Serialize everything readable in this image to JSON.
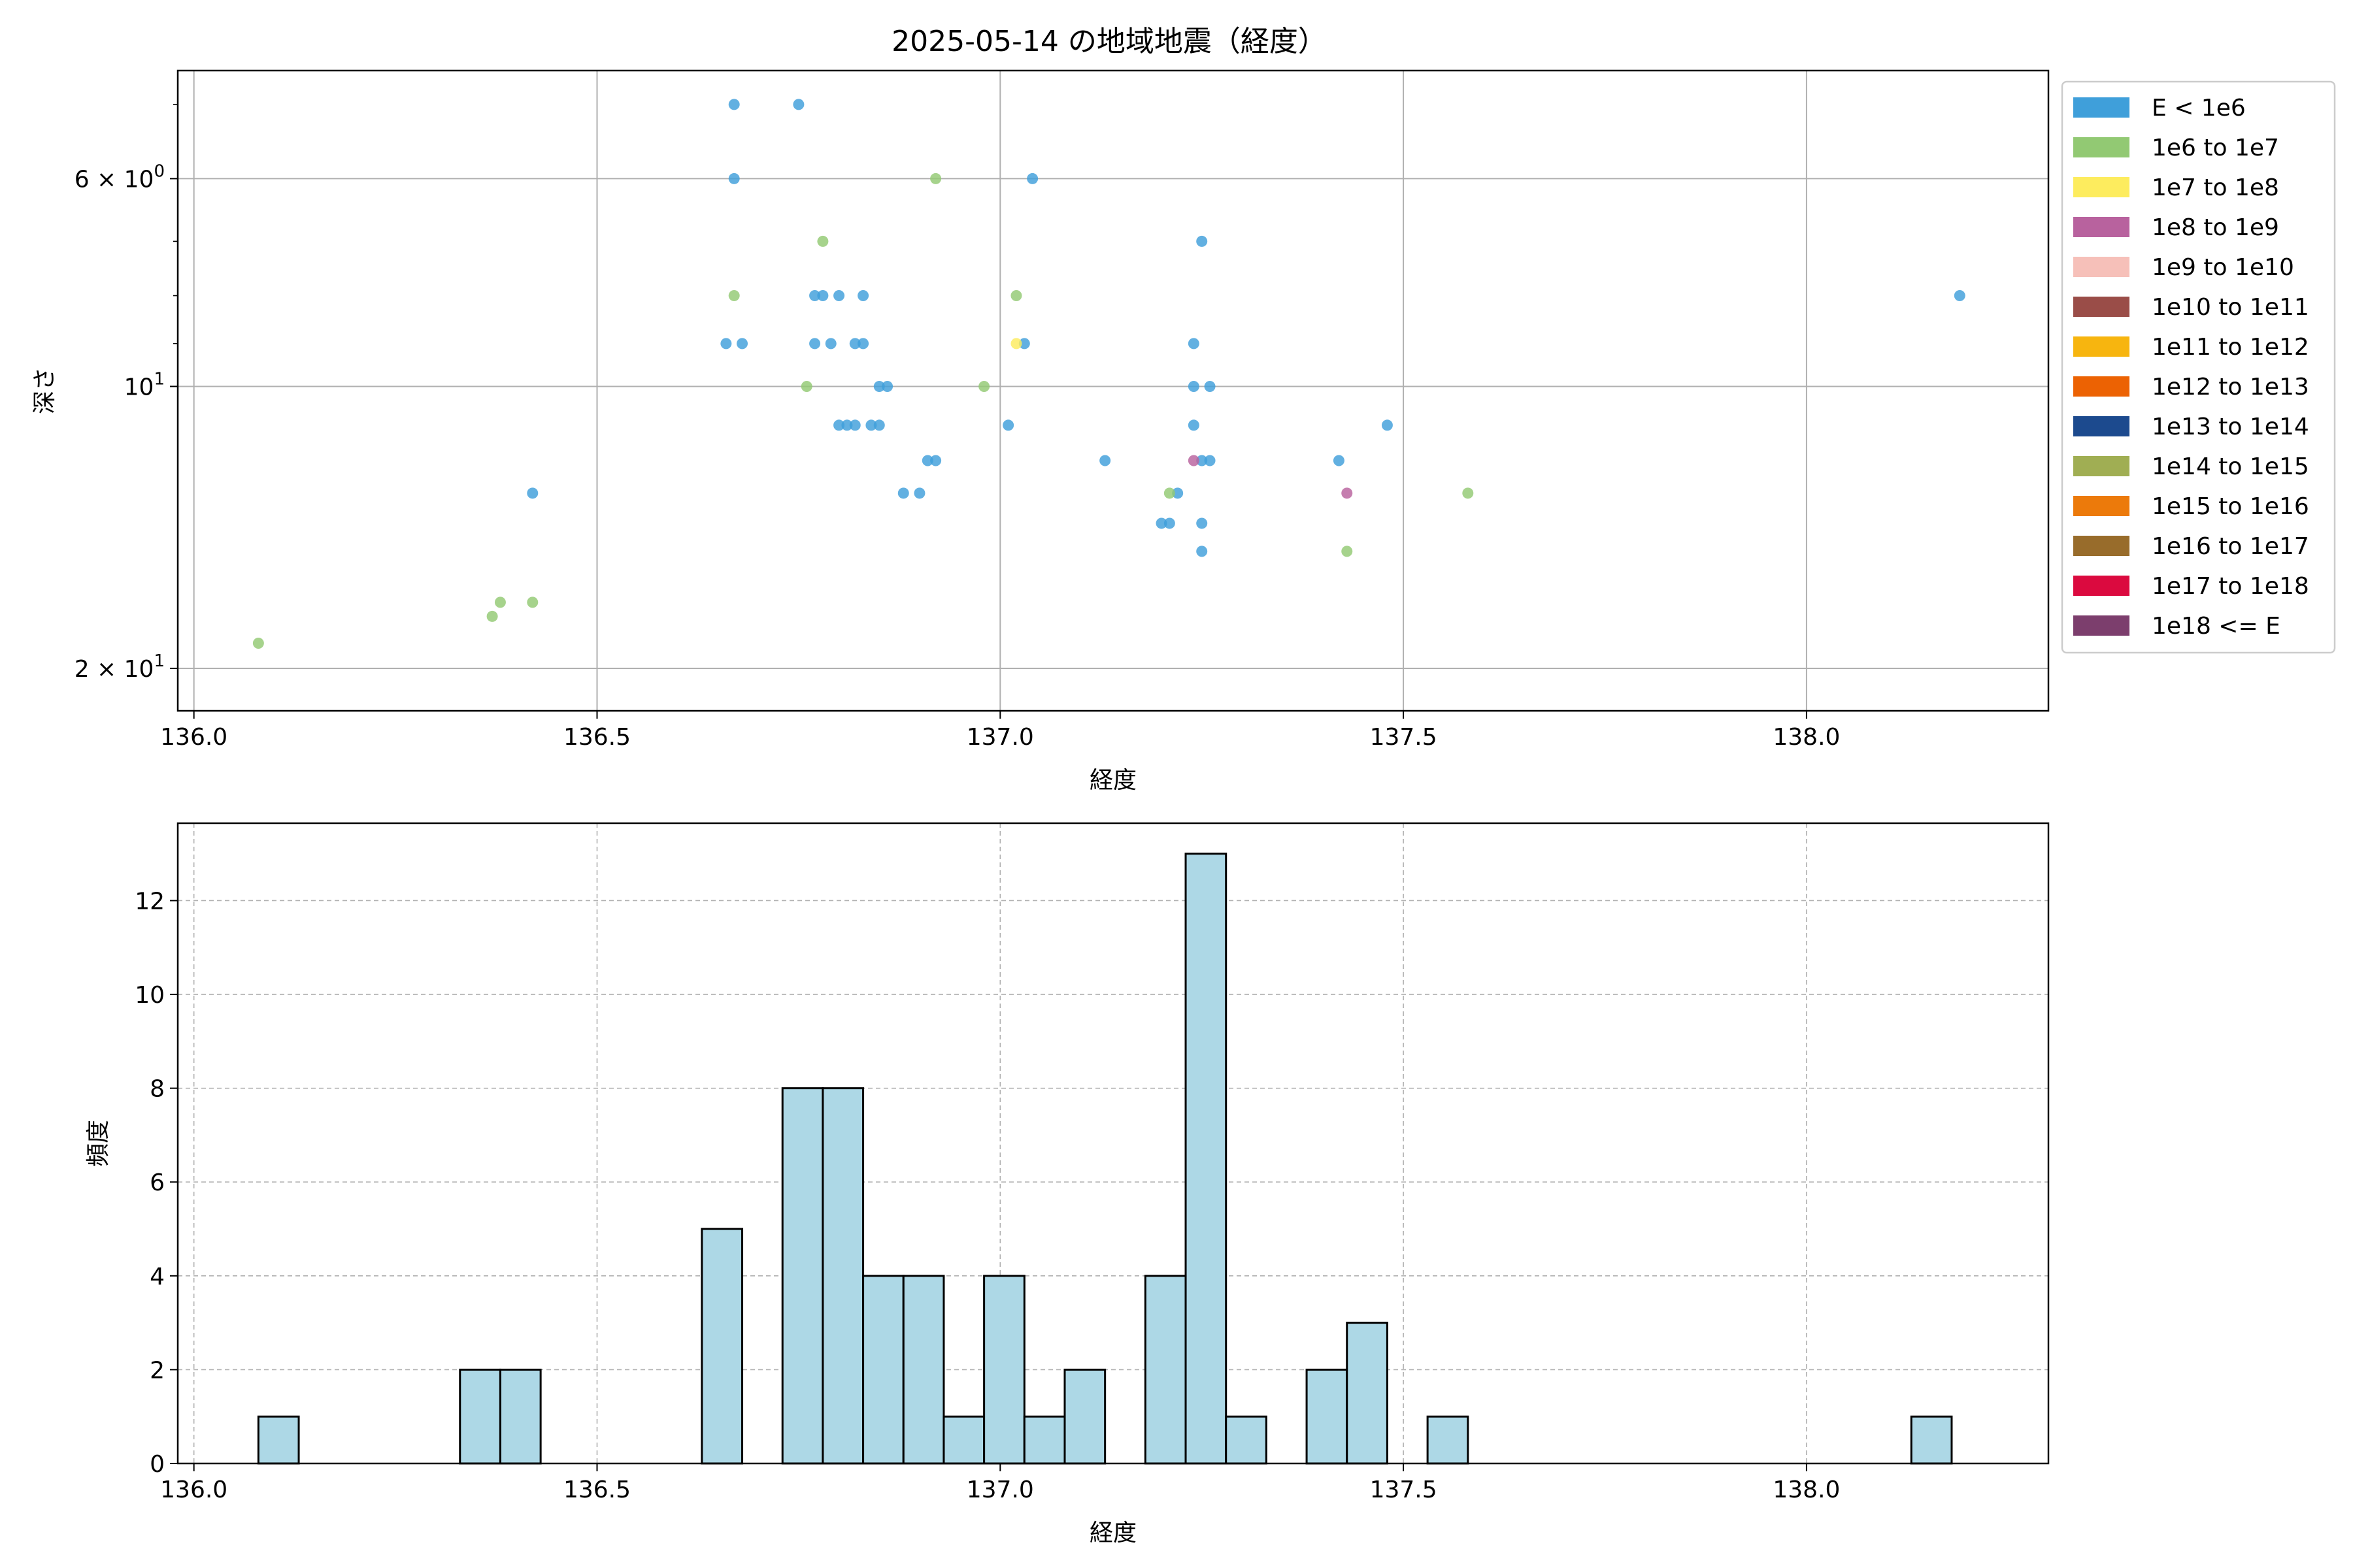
{
  "figure_title": "2025-05-14 の地域地震（経度）",
  "legend": [
    {
      "label": "E < 1e6",
      "color": "#3f9fda"
    },
    {
      "label": "1e6 to 1e7",
      "color": "#92c973"
    },
    {
      "label": "1e7 to 1e8",
      "color": "#fdec5e"
    },
    {
      "label": "1e8 to 1e9",
      "color": "#b8629e"
    },
    {
      "label": "1e9 to 1e10",
      "color": "#f6c0b9"
    },
    {
      "label": "1e10 to 1e11",
      "color": "#9a4d48"
    },
    {
      "label": "1e11 to 1e12",
      "color": "#f7b50f"
    },
    {
      "label": "1e12 to 1e13",
      "color": "#ec6203"
    },
    {
      "label": "1e13 to 1e14",
      "color": "#1c4a8e"
    },
    {
      "label": "1e14 to 1e15",
      "color": "#a0ae53"
    },
    {
      "label": "1e15 to 1e16",
      "color": "#ec7a0b"
    },
    {
      "label": "1e16 to 1e17",
      "color": "#986c2b"
    },
    {
      "label": "1e17 to 1e18",
      "color": "#db0a3f"
    },
    {
      "label": "1e18 <= E",
      "color": "#7c3e6d"
    }
  ],
  "chart_data": [
    {
      "type": "scatter",
      "xlabel": "経度",
      "ylabel": "深さ",
      "xlim": [
        135.98,
        138.3
      ],
      "ylim": [
        22.2,
        4.6
      ],
      "yscale": "log",
      "yaxis_inverted": true,
      "grid": true,
      "legend_position": "outside-right",
      "x_ticks": [
        "136.0",
        "136.5",
        "137.0",
        "137.5",
        "138.0"
      ],
      "x_tick_values": [
        136.0,
        136.5,
        137.0,
        137.5,
        138.0
      ],
      "y_major_ticks": [
        {
          "value": 6,
          "base": "6 × 10",
          "exp": "0"
        },
        {
          "value": 10,
          "base": "10",
          "exp": "1"
        },
        {
          "value": 20,
          "base": "2 × 10",
          "exp": "1"
        }
      ],
      "y_minor_ticks": [
        5,
        7,
        8,
        9
      ],
      "series": [
        {
          "class": 0,
          "color": "#3f9fda",
          "points": [
            [
              136.67,
              5.0
            ],
            [
              136.75,
              5.0
            ],
            [
              136.67,
              6.0
            ],
            [
              137.04,
              6.0
            ],
            [
              137.25,
              7.0
            ],
            [
              136.77,
              8.0
            ],
            [
              136.78,
              8.0
            ],
            [
              136.8,
              8.0
            ],
            [
              136.83,
              8.0
            ],
            [
              138.19,
              8.0
            ],
            [
              136.66,
              9.0
            ],
            [
              136.68,
              9.0
            ],
            [
              136.77,
              9.0
            ],
            [
              136.79,
              9.0
            ],
            [
              136.82,
              9.0
            ],
            [
              136.83,
              9.0
            ],
            [
              137.03,
              9.0
            ],
            [
              137.24,
              9.0
            ],
            [
              136.85,
              10.0
            ],
            [
              136.86,
              10.0
            ],
            [
              137.24,
              10.0
            ],
            [
              137.26,
              10.0
            ],
            [
              136.8,
              11.0
            ],
            [
              136.81,
              11.0
            ],
            [
              136.82,
              11.0
            ],
            [
              136.84,
              11.0
            ],
            [
              136.85,
              11.0
            ],
            [
              137.01,
              11.0
            ],
            [
              137.24,
              11.0
            ],
            [
              137.48,
              11.0
            ],
            [
              136.91,
              12.0
            ],
            [
              136.92,
              12.0
            ],
            [
              137.13,
              12.0
            ],
            [
              137.25,
              12.0
            ],
            [
              137.26,
              12.0
            ],
            [
              137.42,
              12.0
            ],
            [
              136.42,
              13.0
            ],
            [
              136.88,
              13.0
            ],
            [
              136.9,
              13.0
            ],
            [
              137.22,
              13.0
            ],
            [
              137.2,
              14.0
            ],
            [
              137.21,
              14.0
            ],
            [
              137.25,
              14.0
            ],
            [
              137.25,
              15.0
            ]
          ]
        },
        {
          "class": 1,
          "color": "#92c973",
          "points": [
            [
              136.92,
              6.0
            ],
            [
              136.78,
              7.0
            ],
            [
              136.67,
              8.0
            ],
            [
              137.02,
              8.0
            ],
            [
              136.76,
              10.0
            ],
            [
              136.98,
              10.0
            ],
            [
              137.21,
              13.0
            ],
            [
              137.58,
              13.0
            ],
            [
              137.43,
              15.0
            ],
            [
              136.38,
              17.0
            ],
            [
              136.42,
              17.0
            ],
            [
              136.37,
              17.6
            ],
            [
              136.08,
              18.8
            ]
          ]
        },
        {
          "class": 2,
          "color": "#fdec5e",
          "points": [
            [
              137.02,
              9.0
            ]
          ]
        },
        {
          "class": 3,
          "color": "#b8629e",
          "points": [
            [
              137.24,
              12.0
            ],
            [
              137.43,
              13.0
            ]
          ]
        }
      ]
    },
    {
      "type": "bar",
      "subtype": "histogram",
      "xlabel": "経度",
      "ylabel": "頻度",
      "xlim": [
        135.98,
        138.3
      ],
      "ylim": [
        0,
        13.65
      ],
      "grid": true,
      "x_ticks": [
        "136.0",
        "136.5",
        "137.0",
        "137.5",
        "138.0"
      ],
      "x_tick_values": [
        136.0,
        136.5,
        137.0,
        137.5,
        138.0
      ],
      "y_ticks": [
        0,
        2,
        4,
        6,
        8,
        10,
        12
      ],
      "bar_color": "#add8e6",
      "bins": [
        {
          "x0": 136.08,
          "x1": 136.13,
          "count": 1
        },
        {
          "x0": 136.33,
          "x1": 136.38,
          "count": 2
        },
        {
          "x0": 136.38,
          "x1": 136.43,
          "count": 2
        },
        {
          "x0": 136.63,
          "x1": 136.68,
          "count": 5
        },
        {
          "x0": 136.73,
          "x1": 136.78,
          "count": 8
        },
        {
          "x0": 136.78,
          "x1": 136.83,
          "count": 8
        },
        {
          "x0": 136.83,
          "x1": 136.88,
          "count": 4
        },
        {
          "x0": 136.88,
          "x1": 136.93,
          "count": 4
        },
        {
          "x0": 136.93,
          "x1": 136.98,
          "count": 1
        },
        {
          "x0": 136.98,
          "x1": 137.03,
          "count": 4
        },
        {
          "x0": 137.03,
          "x1": 137.08,
          "count": 1
        },
        {
          "x0": 137.08,
          "x1": 137.13,
          "count": 2
        },
        {
          "x0": 137.18,
          "x1": 137.23,
          "count": 4
        },
        {
          "x0": 137.23,
          "x1": 137.28,
          "count": 13
        },
        {
          "x0": 137.28,
          "x1": 137.33,
          "count": 1
        },
        {
          "x0": 137.38,
          "x1": 137.43,
          "count": 2
        },
        {
          "x0": 137.43,
          "x1": 137.48,
          "count": 3
        },
        {
          "x0": 137.53,
          "x1": 137.58,
          "count": 1
        },
        {
          "x0": 138.13,
          "x1": 138.18,
          "count": 1
        }
      ]
    }
  ]
}
